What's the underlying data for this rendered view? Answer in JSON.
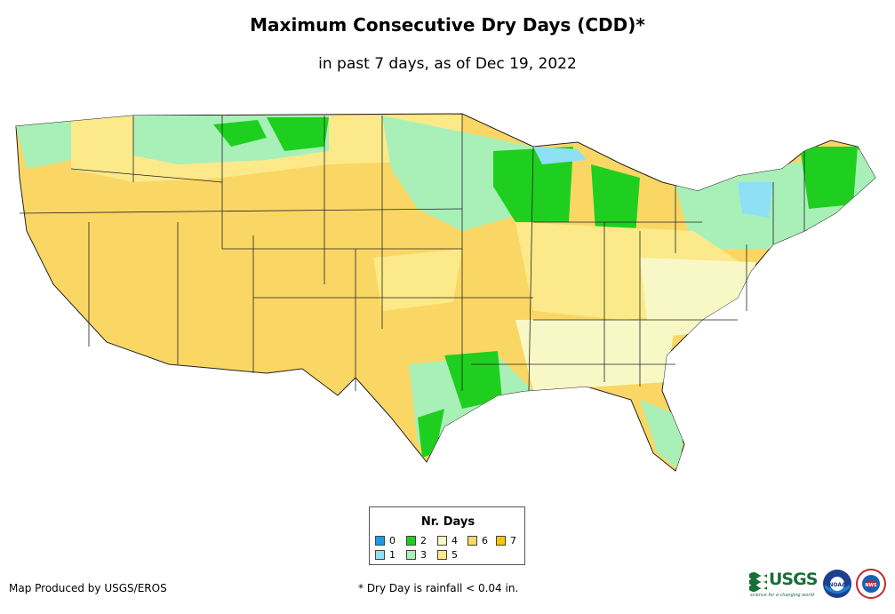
{
  "header": {
    "title": "Maximum Consecutive Dry Days (CDD)*",
    "subtitle": "in past 7 days, as of Dec 19, 2022"
  },
  "legend": {
    "title": "Nr. Days",
    "items": [
      {
        "label": "0",
        "color": "#1a9be0"
      },
      {
        "label": "1",
        "color": "#8ee0f5"
      },
      {
        "label": "2",
        "color": "#1fcf1f"
      },
      {
        "label": "3",
        "color": "#a8f0b8"
      },
      {
        "label": "4",
        "color": "#f8f8c6"
      },
      {
        "label": "5",
        "color": "#fbe98a"
      },
      {
        "label": "6",
        "color": "#fad765"
      },
      {
        "label": "7",
        "color": "#f9c400"
      }
    ]
  },
  "footer": {
    "credit": "Map Produced by USGS/EROS",
    "note": "* Dry Day is rainfall < 0.04 in."
  },
  "logos": {
    "usgs": "USGS",
    "usgs_tagline": "science for a changing world",
    "noaa": "NOAA",
    "nws": "NWS"
  },
  "colors": {
    "state_border": "#222222",
    "background": "#ffffff"
  }
}
